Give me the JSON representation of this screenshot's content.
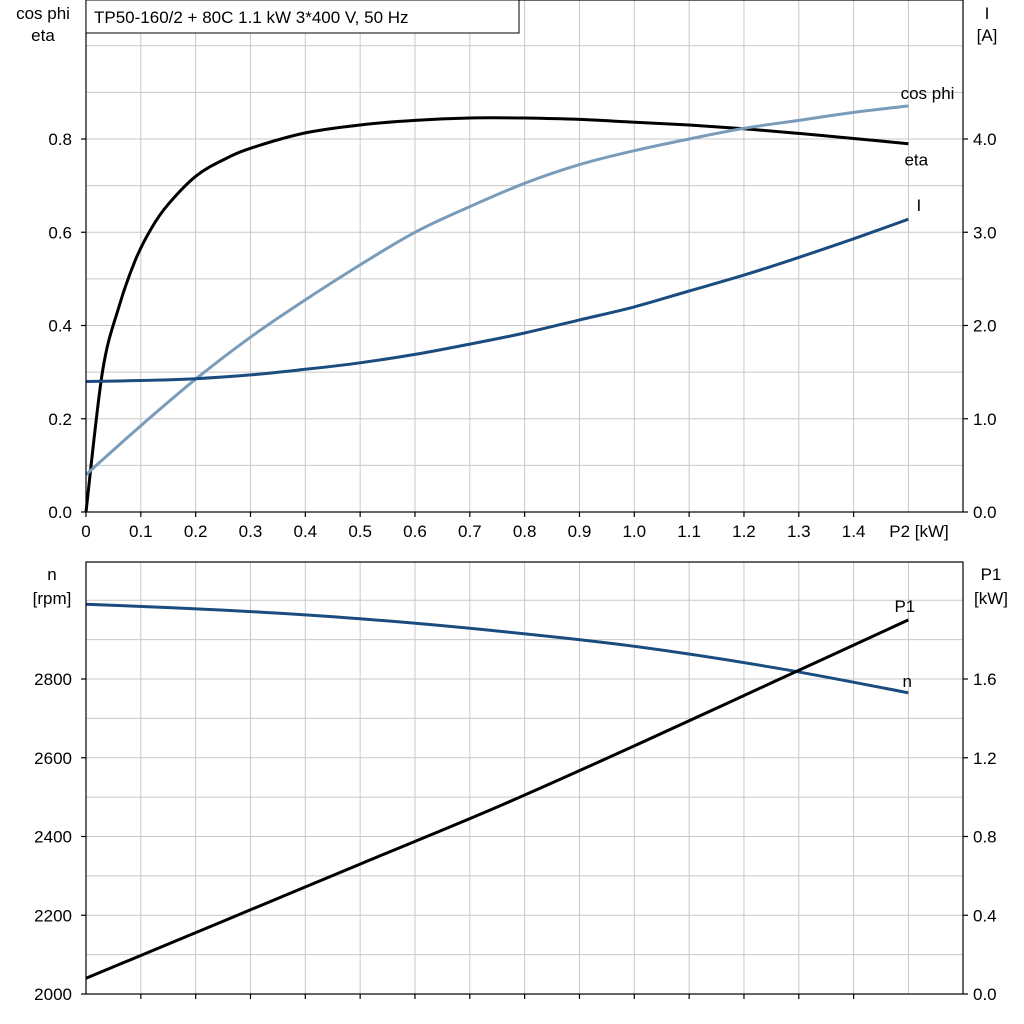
{
  "chart_data": [
    {
      "type": "line",
      "title": "TP50-160/2 + 80C   1.1 kW   3*400 V, 50 Hz",
      "xlabel": "P2 [kW]",
      "ylabel_left": [
        "cos phi",
        "eta"
      ],
      "ylabel_right": [
        "I",
        "[A]"
      ],
      "xlim": [
        0,
        1.5
      ],
      "ylim_left": [
        0,
        0.9
      ],
      "ylim_right": [
        0,
        4.5
      ],
      "x_ticks": [
        "0",
        "0.1",
        "0.2",
        "0.3",
        "0.4",
        "0.5",
        "0.6",
        "0.7",
        "0.8",
        "0.9",
        "1.0",
        "1.1",
        "1.2",
        "1.3",
        "1.4"
      ],
      "y_ticks_left": [
        "0.0",
        "0.2",
        "0.4",
        "0.6",
        "0.8"
      ],
      "y_ticks_right": [
        "0.0",
        "1.0",
        "2.0",
        "3.0",
        "4.0"
      ],
      "grid": true,
      "series": [
        {
          "name": "eta",
          "axis": "left",
          "color": "#000000",
          "x": [
            0,
            0.03,
            0.06,
            0.09,
            0.12,
            0.15,
            0.2,
            0.25,
            0.3,
            0.4,
            0.5,
            0.6,
            0.7,
            0.8,
            0.9,
            1.0,
            1.1,
            1.2,
            1.3,
            1.4,
            1.5
          ],
          "y": [
            0,
            0.3,
            0.44,
            0.54,
            0.61,
            0.66,
            0.72,
            0.755,
            0.78,
            0.813,
            0.83,
            0.84,
            0.845,
            0.845,
            0.842,
            0.836,
            0.83,
            0.822,
            0.812,
            0.801,
            0.79
          ]
        },
        {
          "name": "cos phi",
          "axis": "left",
          "color": "#7a9cbb",
          "x": [
            0,
            0.1,
            0.2,
            0.3,
            0.4,
            0.5,
            0.6,
            0.7,
            0.8,
            0.9,
            1.0,
            1.1,
            1.2,
            1.3,
            1.4,
            1.5
          ],
          "y": [
            0.08,
            0.185,
            0.285,
            0.375,
            0.455,
            0.53,
            0.6,
            0.655,
            0.705,
            0.745,
            0.775,
            0.8,
            0.823,
            0.84,
            0.857,
            0.871
          ]
        },
        {
          "name": "I",
          "axis": "right",
          "color": "#1a4c80",
          "x": [
            0,
            0.1,
            0.2,
            0.3,
            0.4,
            0.5,
            0.6,
            0.7,
            0.8,
            0.9,
            1.0,
            1.1,
            1.2,
            1.3,
            1.4,
            1.5
          ],
          "y": [
            1.4,
            1.41,
            1.43,
            1.47,
            1.53,
            1.6,
            1.69,
            1.8,
            1.92,
            2.06,
            2.2,
            2.37,
            2.54,
            2.73,
            2.93,
            3.14
          ]
        }
      ]
    },
    {
      "type": "line",
      "xlim": [
        0,
        1.5
      ],
      "ylabel_left": [
        "n",
        "[rpm]"
      ],
      "ylabel_right": [
        "P1",
        "[kW]"
      ],
      "ylim_left": [
        2000,
        3000
      ],
      "ylim_right": [
        0,
        2.2
      ],
      "y_ticks_left": [
        "2000",
        "2200",
        "2400",
        "2600",
        "2800"
      ],
      "y_ticks_right": [
        "0.0",
        "0.4",
        "0.8",
        "1.2",
        "1.6"
      ],
      "grid": true,
      "series": [
        {
          "name": "n",
          "axis": "left",
          "color": "#1a4c80",
          "x": [
            0,
            0.25,
            0.5,
            0.75,
            1.0,
            1.25,
            1.5
          ],
          "y": [
            2990,
            2975,
            2953,
            2922,
            2883,
            2830,
            2765
          ]
        },
        {
          "name": "P1",
          "axis": "right",
          "color": "#000000",
          "x": [
            0,
            0.25,
            0.5,
            0.75,
            1.0,
            1.25,
            1.5
          ],
          "y": [
            0.08,
            0.37,
            0.66,
            0.95,
            1.26,
            1.58,
            1.9
          ]
        }
      ]
    }
  ]
}
